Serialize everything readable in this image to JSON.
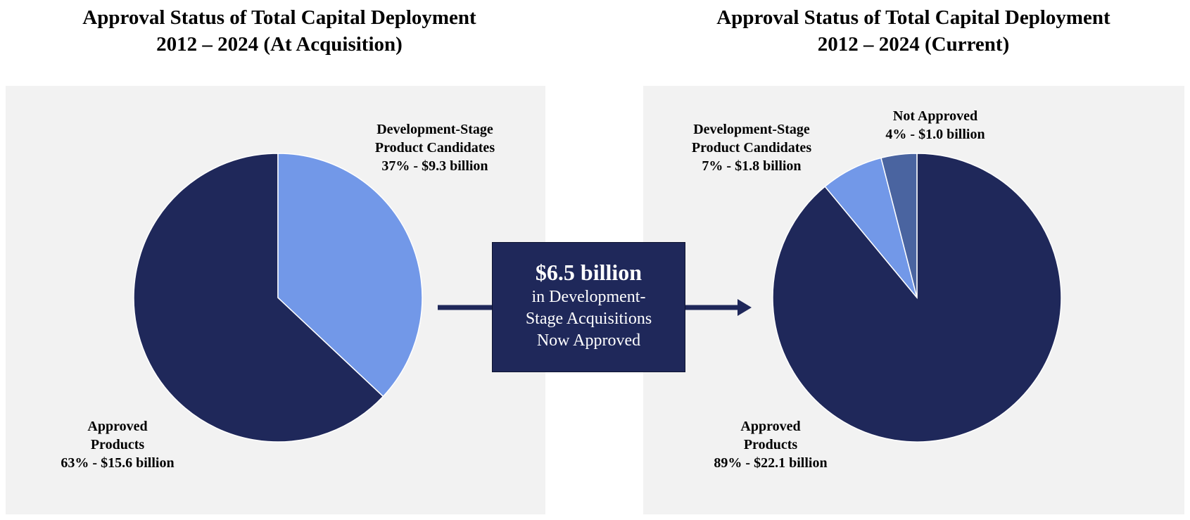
{
  "colors": {
    "approved": "#1f285a",
    "development": "#7298e8",
    "not_approved": "#4a64a0",
    "panel": "#f2f2f2"
  },
  "callout": {
    "headline": "$6.5 billion",
    "lines": [
      "in Development-",
      "Stage Acquisitions",
      "Now Approved"
    ]
  },
  "chart_data": [
    {
      "type": "pie",
      "title_lines": [
        "Approval Status of Total Capital Deployment",
        "2012 – 2024 (At Acquisition)"
      ],
      "slices": [
        {
          "key": "development",
          "label_lines": [
            "Development-Stage",
            "Product Candidates",
            "37% - $9.3 billion"
          ],
          "percent": 37,
          "value_billion": 9.3
        },
        {
          "key": "approved",
          "label_lines": [
            "Approved",
            "Products",
            "63% - $15.6 billion"
          ],
          "percent": 63,
          "value_billion": 15.6
        }
      ]
    },
    {
      "type": "pie",
      "title_lines": [
        "Approval Status of Total Capital Deployment",
        "2012 – 2024 (Current)"
      ],
      "slices": [
        {
          "key": "approved",
          "label_lines": [
            "Approved",
            "Products",
            "89% - $22.1 billion"
          ],
          "percent": 89,
          "value_billion": 22.1
        },
        {
          "key": "development",
          "label_lines": [
            "Development-Stage",
            "Product Candidates",
            "7% - $1.8 billion"
          ],
          "percent": 7,
          "value_billion": 1.8
        },
        {
          "key": "not_approved",
          "label_lines": [
            "Not Approved",
            "4% - $1.0 billion"
          ],
          "percent": 4,
          "value_billion": 1.0
        }
      ]
    }
  ]
}
